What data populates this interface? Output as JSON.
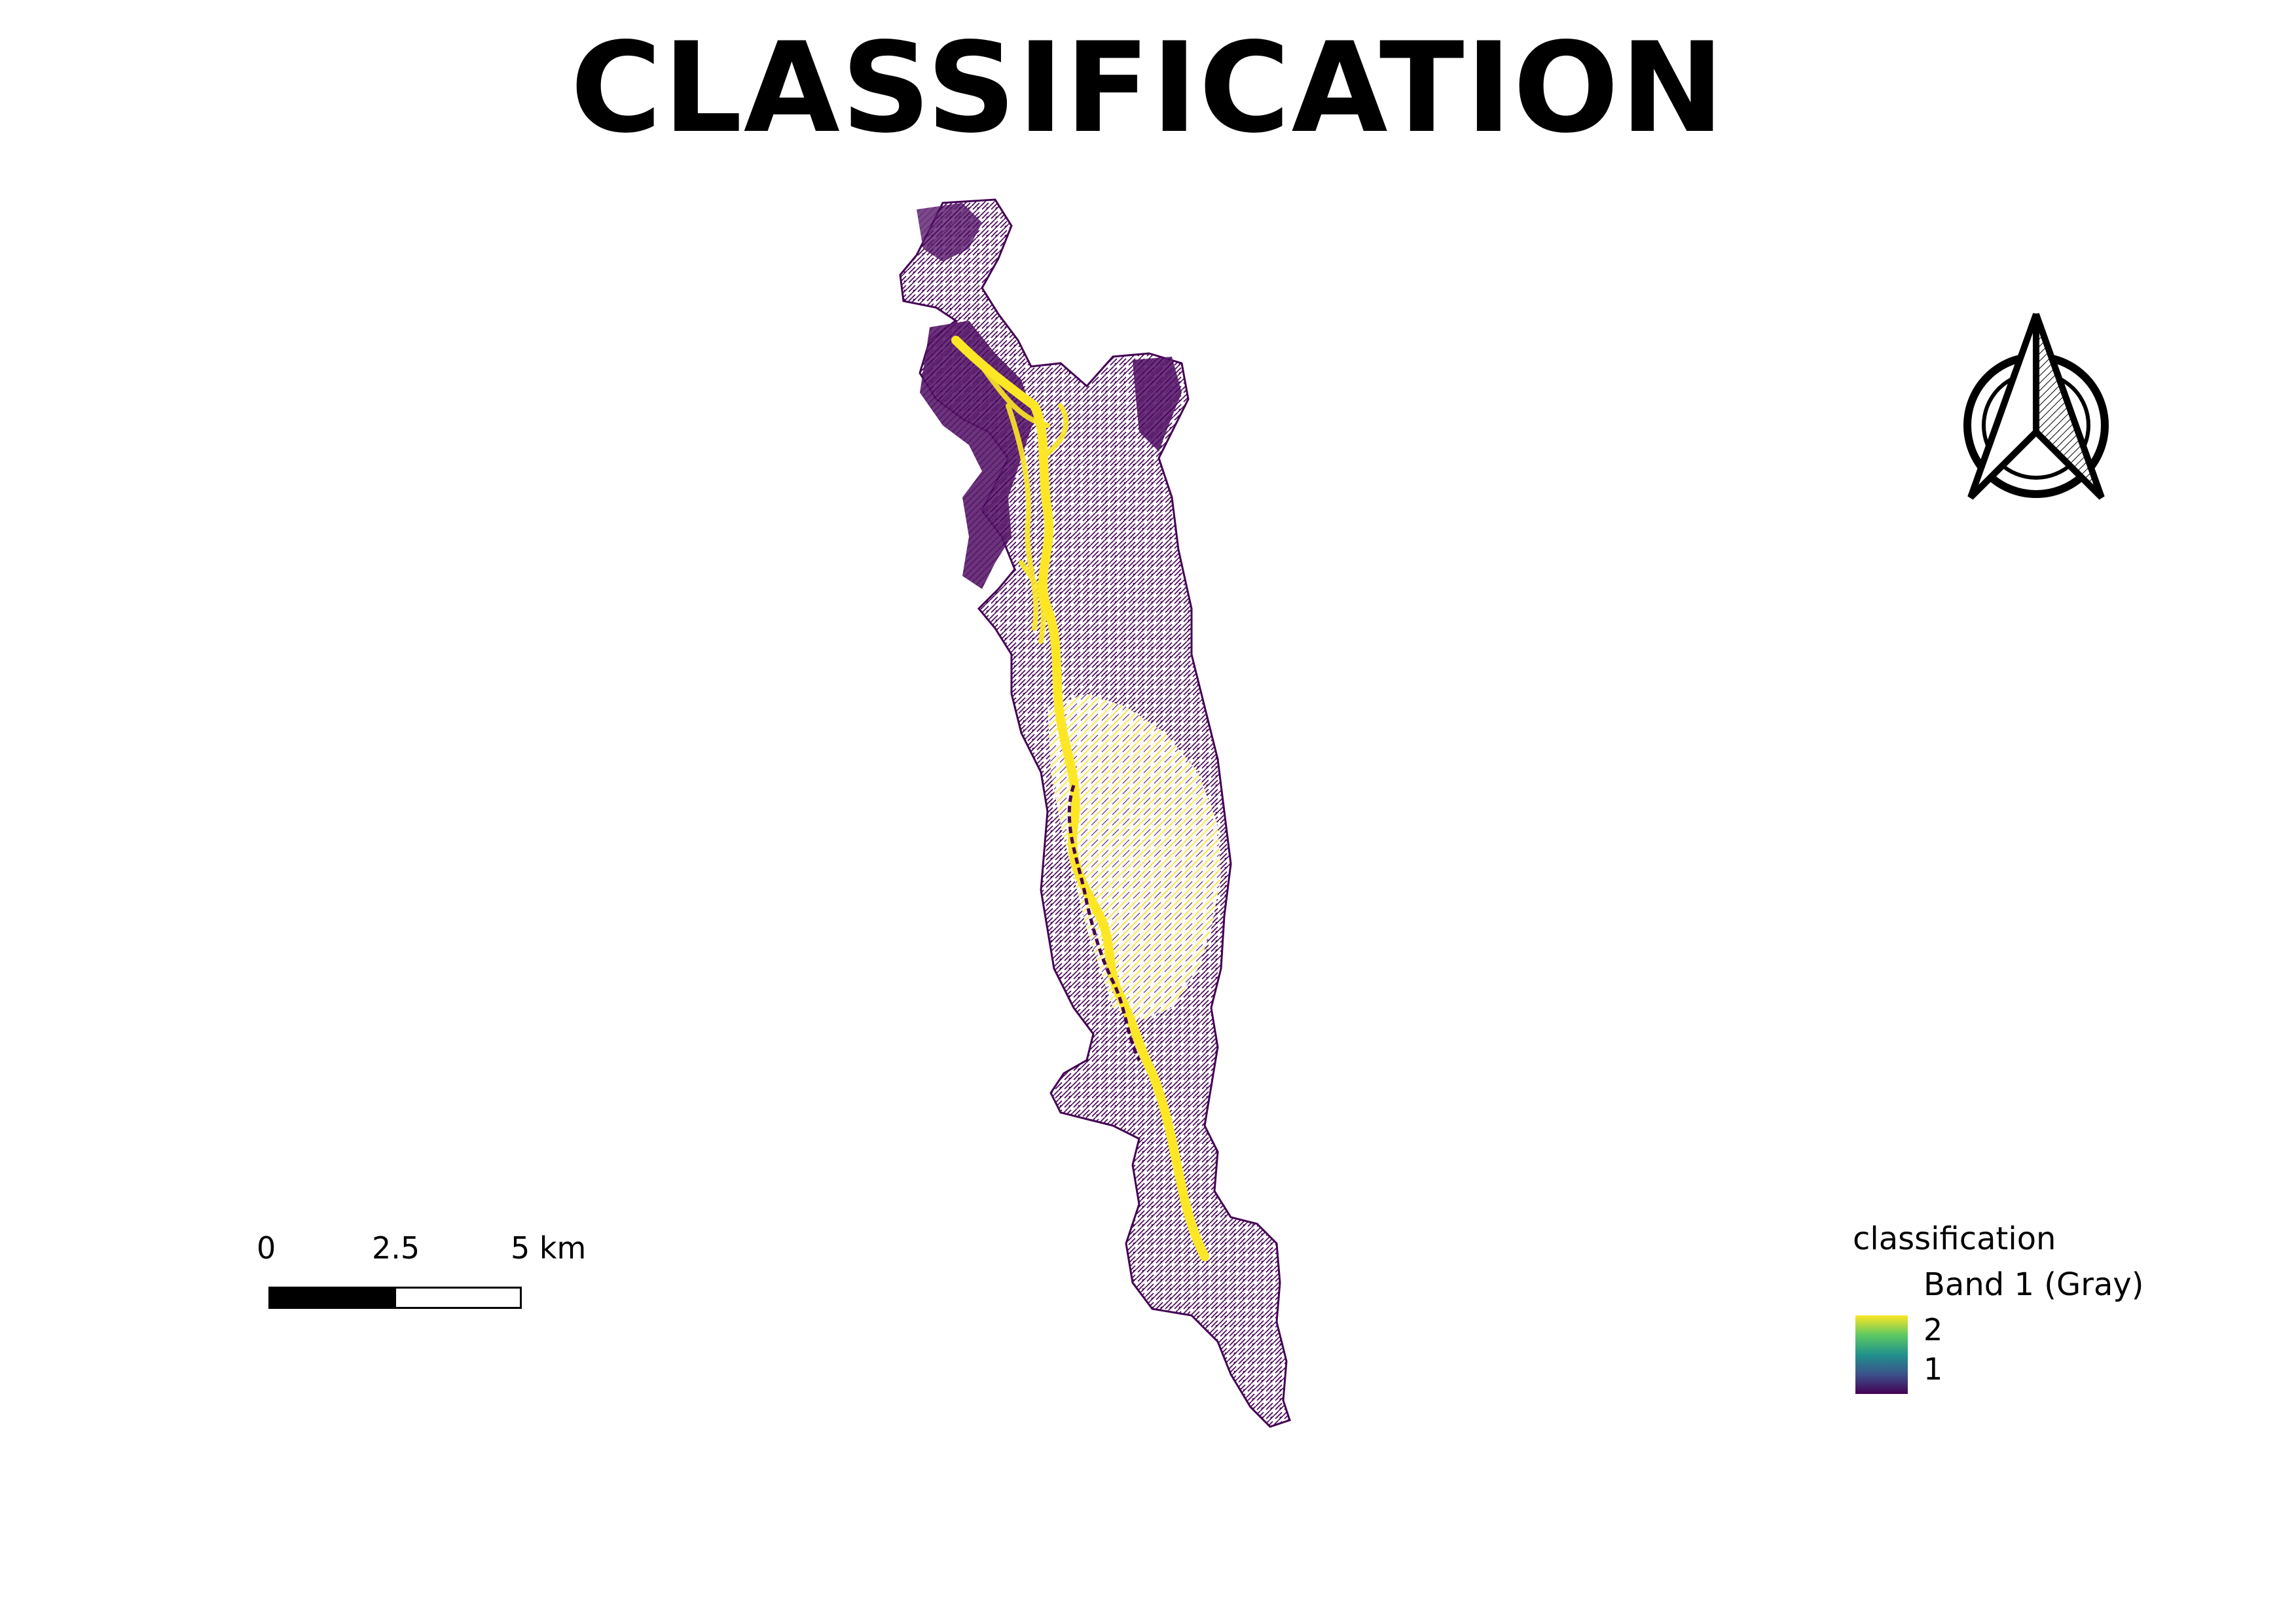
{
  "title": "CLASSIFICATION",
  "scalebar": {
    "labels": [
      "0",
      "2.5",
      "5 km"
    ]
  },
  "legend": {
    "layer_name": "classification",
    "band_name": "Band 1 (Gray)",
    "max_label": "2",
    "min_label": "1",
    "ramp_colors": [
      "#fde725",
      "#5ec962",
      "#21918c",
      "#3b528b",
      "#440154"
    ]
  },
  "map": {
    "class_colors": {
      "class_1": "#440154",
      "class_2": "#fde725"
    }
  },
  "north_arrow": {
    "icon": "north-arrow-icon"
  }
}
